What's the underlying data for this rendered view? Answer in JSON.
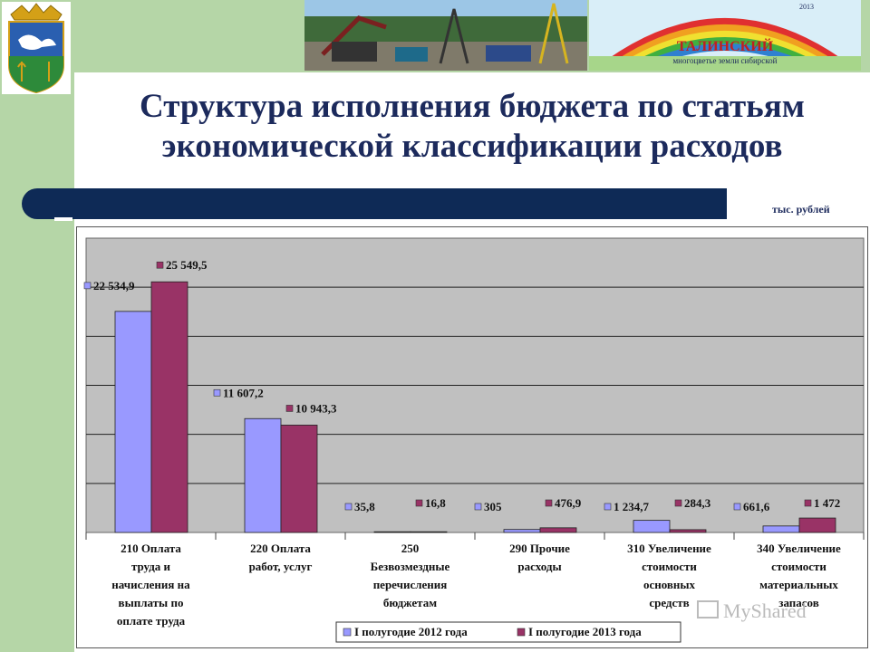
{
  "header": {
    "title_line1": "Структура исполнения бюджета по статьям",
    "title_line2": "экономической классификации расходов",
    "unit_label": "тыс. рублей",
    "banner_caption": "ТАЛИНСКИЙ",
    "banner_subcaption": "многоцветье земли сибирской",
    "banner_year": "2013"
  },
  "colors": {
    "series_2012": "#9999ff",
    "series_2013": "#993366",
    "plot_bg": "#c0c0c0",
    "navy": "#0e2a56",
    "green": "#b5d6a7"
  },
  "chart_data": {
    "type": "bar",
    "categories": [
      [
        "210 Оплата",
        "труда и",
        "начисления на",
        "выплаты по",
        "оплате труда"
      ],
      [
        "220 Оплата",
        "работ, услуг"
      ],
      [
        "250",
        "Безвозмездные",
        "перечисления",
        "бюджетам"
      ],
      [
        "290 Прочие",
        "расходы"
      ],
      [
        "310 Увеличение",
        "стоимости",
        "основных",
        "средств"
      ],
      [
        "340 Увеличение",
        "стоимости",
        "материальных",
        "запасов"
      ]
    ],
    "series": [
      {
        "name": "I полугодие 2012 года",
        "values": [
          22534.9,
          11607.2,
          35.8,
          305,
          1234.7,
          661.6
        ],
        "labels": [
          "22 534,9",
          "11 607,2",
          "35,8",
          "305",
          "1 234,7",
          "661,6"
        ]
      },
      {
        "name": "I полугодие 2013 года",
        "values": [
          25549.5,
          10943.3,
          16.8,
          476.9,
          284.3,
          1472
        ],
        "labels": [
          "25 549,5",
          "10 943,3",
          "16,8",
          "476,9",
          "284,3",
          "1 472"
        ]
      }
    ],
    "ylim": [
      0,
      30000
    ],
    "gridlines": true,
    "legend_position": "bottom"
  },
  "watermark": {
    "text": "MyShared"
  }
}
